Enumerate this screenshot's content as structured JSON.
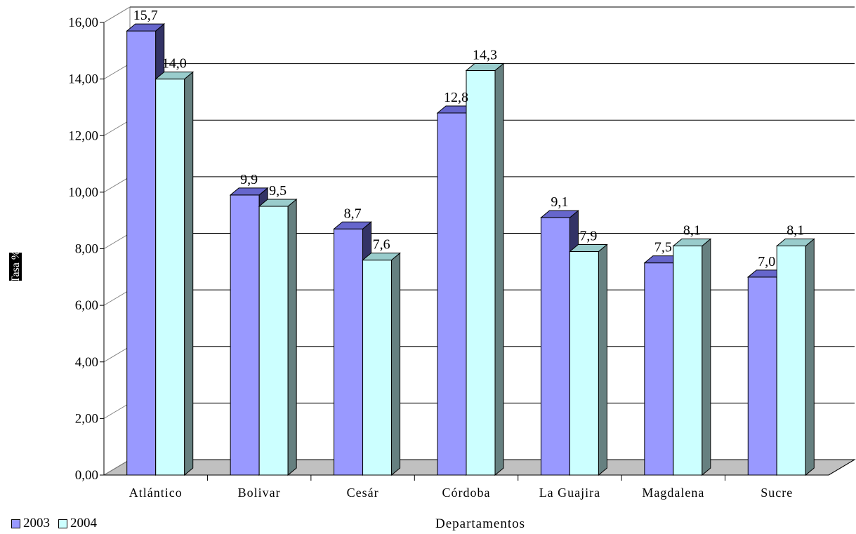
{
  "chart_data": {
    "type": "bar",
    "title": "",
    "xlabel": "Departamentos",
    "ylabel": "Tasa %",
    "ylim": [
      0,
      16
    ],
    "yticks": [
      "0,00",
      "2,00",
      "4,00",
      "6,00",
      "8,00",
      "10,00",
      "12,00",
      "14,00",
      "16,00"
    ],
    "categories": [
      "Atlántico",
      "Bolivar",
      "Cesár",
      "Córdoba",
      "La Guajira",
      "Magdalena",
      "Sucre"
    ],
    "series": [
      {
        "name": "2003",
        "values": [
          15.7,
          9.9,
          8.7,
          12.8,
          9.1,
          7.5,
          7.0
        ],
        "labels": [
          "15,7",
          "9,9",
          "8,7",
          "12,8",
          "9,1",
          "7,5",
          "7,0"
        ],
        "color": "#9999ff"
      },
      {
        "name": "2004",
        "values": [
          14.0,
          9.5,
          7.6,
          14.3,
          7.9,
          8.1,
          8.1
        ],
        "labels": [
          "14,0",
          "9,5",
          "7,6",
          "14,3",
          "7,9",
          "8,1",
          "8,1"
        ],
        "color": "#ccffff"
      }
    ],
    "grid": true,
    "legend_position": "bottom-left",
    "wall_color": "#ffffff",
    "floor_color": "#c0c0c0"
  }
}
